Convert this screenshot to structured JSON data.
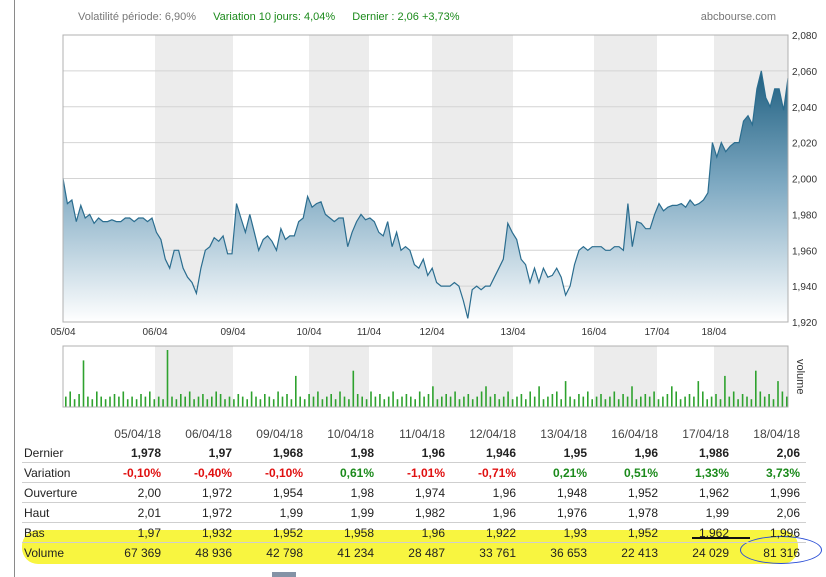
{
  "header": {
    "volatility": "Volatilité période: 6,90%",
    "variation10": "Variation 10 jours: 4,04%",
    "last": "Dernier : 2,06   +3,73%",
    "brand": "abcbourse.com"
  },
  "chart_data": [
    {
      "type": "area",
      "ylim": [
        1.92,
        2.08
      ],
      "yticks": [
        "2,080",
        "2,060",
        "2,040",
        "2,020",
        "2,000",
        "1,980",
        "1,960",
        "1,940",
        "1,920"
      ],
      "x_labels": [
        "05/04",
        "06/04",
        "09/04",
        "10/04",
        "11/04",
        "12/04",
        "13/04",
        "16/04",
        "17/04",
        "18/04"
      ],
      "series": [
        {
          "values": [
            2.0,
            1.986,
            1.988,
            1.976,
            1.985,
            1.978,
            1.98,
            1.975,
            1.978,
            1.976,
            1.976,
            1.977,
            1.976,
            1.976,
            1.978,
            1.978,
            1.976,
            1.978,
            1.978,
            1.976,
            1.978,
            1.97,
            1.966,
            1.955,
            1.95,
            1.96,
            1.96,
            1.95,
            1.945,
            1.942,
            1.936,
            1.95,
            1.96,
            1.962,
            1.967,
            1.965,
            1.968,
            1.958,
            1.958,
            1.986,
            1.978,
            1.97,
            1.98,
            1.97,
            1.96,
            1.966,
            1.968,
            1.965,
            1.96,
            1.972,
            1.966,
            1.968,
            1.968,
            1.976,
            1.978,
            1.99,
            1.984,
            1.986,
            1.987,
            1.98,
            1.978,
            1.976,
            1.978,
            1.978,
            1.962,
            1.97,
            1.976,
            1.98,
            1.977,
            1.978,
            1.976,
            1.97,
            1.968,
            1.976,
            1.962,
            1.97,
            1.96,
            1.962,
            1.96,
            1.952,
            1.95,
            1.955,
            1.946,
            1.95,
            1.942,
            1.94,
            1.94,
            1.94,
            1.942,
            1.94,
            1.932,
            1.922,
            1.938,
            1.94,
            1.938,
            1.94,
            1.94,
            1.945,
            1.95,
            1.955,
            1.975,
            1.97,
            1.966,
            1.955,
            1.952,
            1.942,
            1.95,
            1.942,
            1.95,
            1.945,
            1.946,
            1.95,
            1.945,
            1.935,
            1.94,
            1.952,
            1.96,
            1.962,
            1.96,
            1.962,
            1.962,
            1.962,
            1.96,
            1.96,
            1.962,
            1.962,
            1.96,
            1.986,
            1.962,
            1.976,
            1.975,
            1.972,
            1.972,
            1.98,
            1.986,
            1.982,
            1.984,
            1.985,
            1.985,
            1.986,
            1.984,
            1.988,
            1.985,
            1.986,
            1.988,
            1.992,
            2.02,
            2.012,
            2.02,
            2.015,
            2.018,
            2.02,
            2.02,
            2.032,
            2.035,
            2.03,
            2.05,
            2.06,
            2.045,
            2.04,
            2.05,
            2.05,
            2.038,
            2.056
          ]
        }
      ]
    },
    {
      "type": "bar",
      "ylabel": "volume",
      "values": [
        4,
        6,
        3,
        5,
        18,
        4,
        3,
        6,
        4,
        3,
        4,
        5,
        4,
        6,
        3,
        4,
        3,
        5,
        4,
        6,
        3,
        4,
        3,
        22,
        4,
        3,
        5,
        4,
        6,
        3,
        4,
        5,
        3,
        4,
        6,
        5,
        3,
        4,
        3,
        5,
        4,
        3,
        6,
        4,
        3,
        5,
        4,
        3,
        6,
        4,
        5,
        3,
        12,
        4,
        3,
        5,
        4,
        6,
        3,
        4,
        5,
        3,
        6,
        4,
        3,
        14,
        5,
        4,
        3,
        6,
        4,
        5,
        3,
        4,
        6,
        3,
        4,
        5,
        4,
        3,
        6,
        4,
        5,
        8,
        3,
        4,
        5,
        4,
        6,
        3,
        4,
        5,
        3,
        4,
        6,
        8,
        4,
        5,
        3,
        4,
        6,
        3,
        4,
        5,
        3,
        6,
        4,
        8,
        3,
        4,
        5,
        6,
        3,
        10,
        4,
        3,
        5,
        4,
        6,
        3,
        4,
        5,
        3,
        4,
        6,
        3,
        5,
        4,
        8,
        3,
        4,
        5,
        4,
        6,
        3,
        4,
        5,
        8,
        6,
        3,
        4,
        5,
        4,
        10,
        6,
        3,
        4,
        5,
        3,
        12,
        4,
        6,
        3,
        5,
        4,
        3,
        14,
        6,
        4,
        5,
        3,
        10,
        6,
        4
      ]
    }
  ],
  "table": {
    "dates": [
      "05/04/18",
      "06/04/18",
      "09/04/18",
      "10/04/18",
      "11/04/18",
      "12/04/18",
      "13/04/18",
      "16/04/18",
      "17/04/18",
      "18/04/18"
    ],
    "rows": [
      {
        "label": "Dernier",
        "values": [
          "1,978",
          "1,97",
          "1,968",
          "1,98",
          "1,96",
          "1,946",
          "1,95",
          "1,96",
          "1,986",
          "2,06"
        ]
      },
      {
        "label": "Variation",
        "values": [
          "-0,10%",
          "-0,40%",
          "-0,10%",
          "0,61%",
          "-1,01%",
          "-0,71%",
          "0,21%",
          "0,51%",
          "1,33%",
          "3,73%"
        ]
      },
      {
        "label": "Ouverture",
        "values": [
          "2,00",
          "1,972",
          "1,954",
          "1,98",
          "1,974",
          "1,96",
          "1,948",
          "1,952",
          "1,962",
          "1,996"
        ]
      },
      {
        "label": "Haut",
        "values": [
          "2,01",
          "1,972",
          "1,99",
          "1,99",
          "1,982",
          "1,96",
          "1,976",
          "1,978",
          "1,99",
          "2,06"
        ]
      },
      {
        "label": "Bas",
        "values": [
          "1,97",
          "1,932",
          "1,952",
          "1,958",
          "1,96",
          "1,922",
          "1,93",
          "1,952",
          "1,962",
          "1,996"
        ]
      },
      {
        "label": "Volume",
        "values": [
          "67 369",
          "48 936",
          "42 798",
          "41 234",
          "28 487",
          "33 761",
          "36 653",
          "22 413",
          "24 029",
          "81 316"
        ]
      }
    ]
  },
  "colors": {
    "accent_green": "#1b8a1b",
    "negative_red": "#e01010",
    "highlight": "#f7f430",
    "line": "#2b6d8f"
  }
}
